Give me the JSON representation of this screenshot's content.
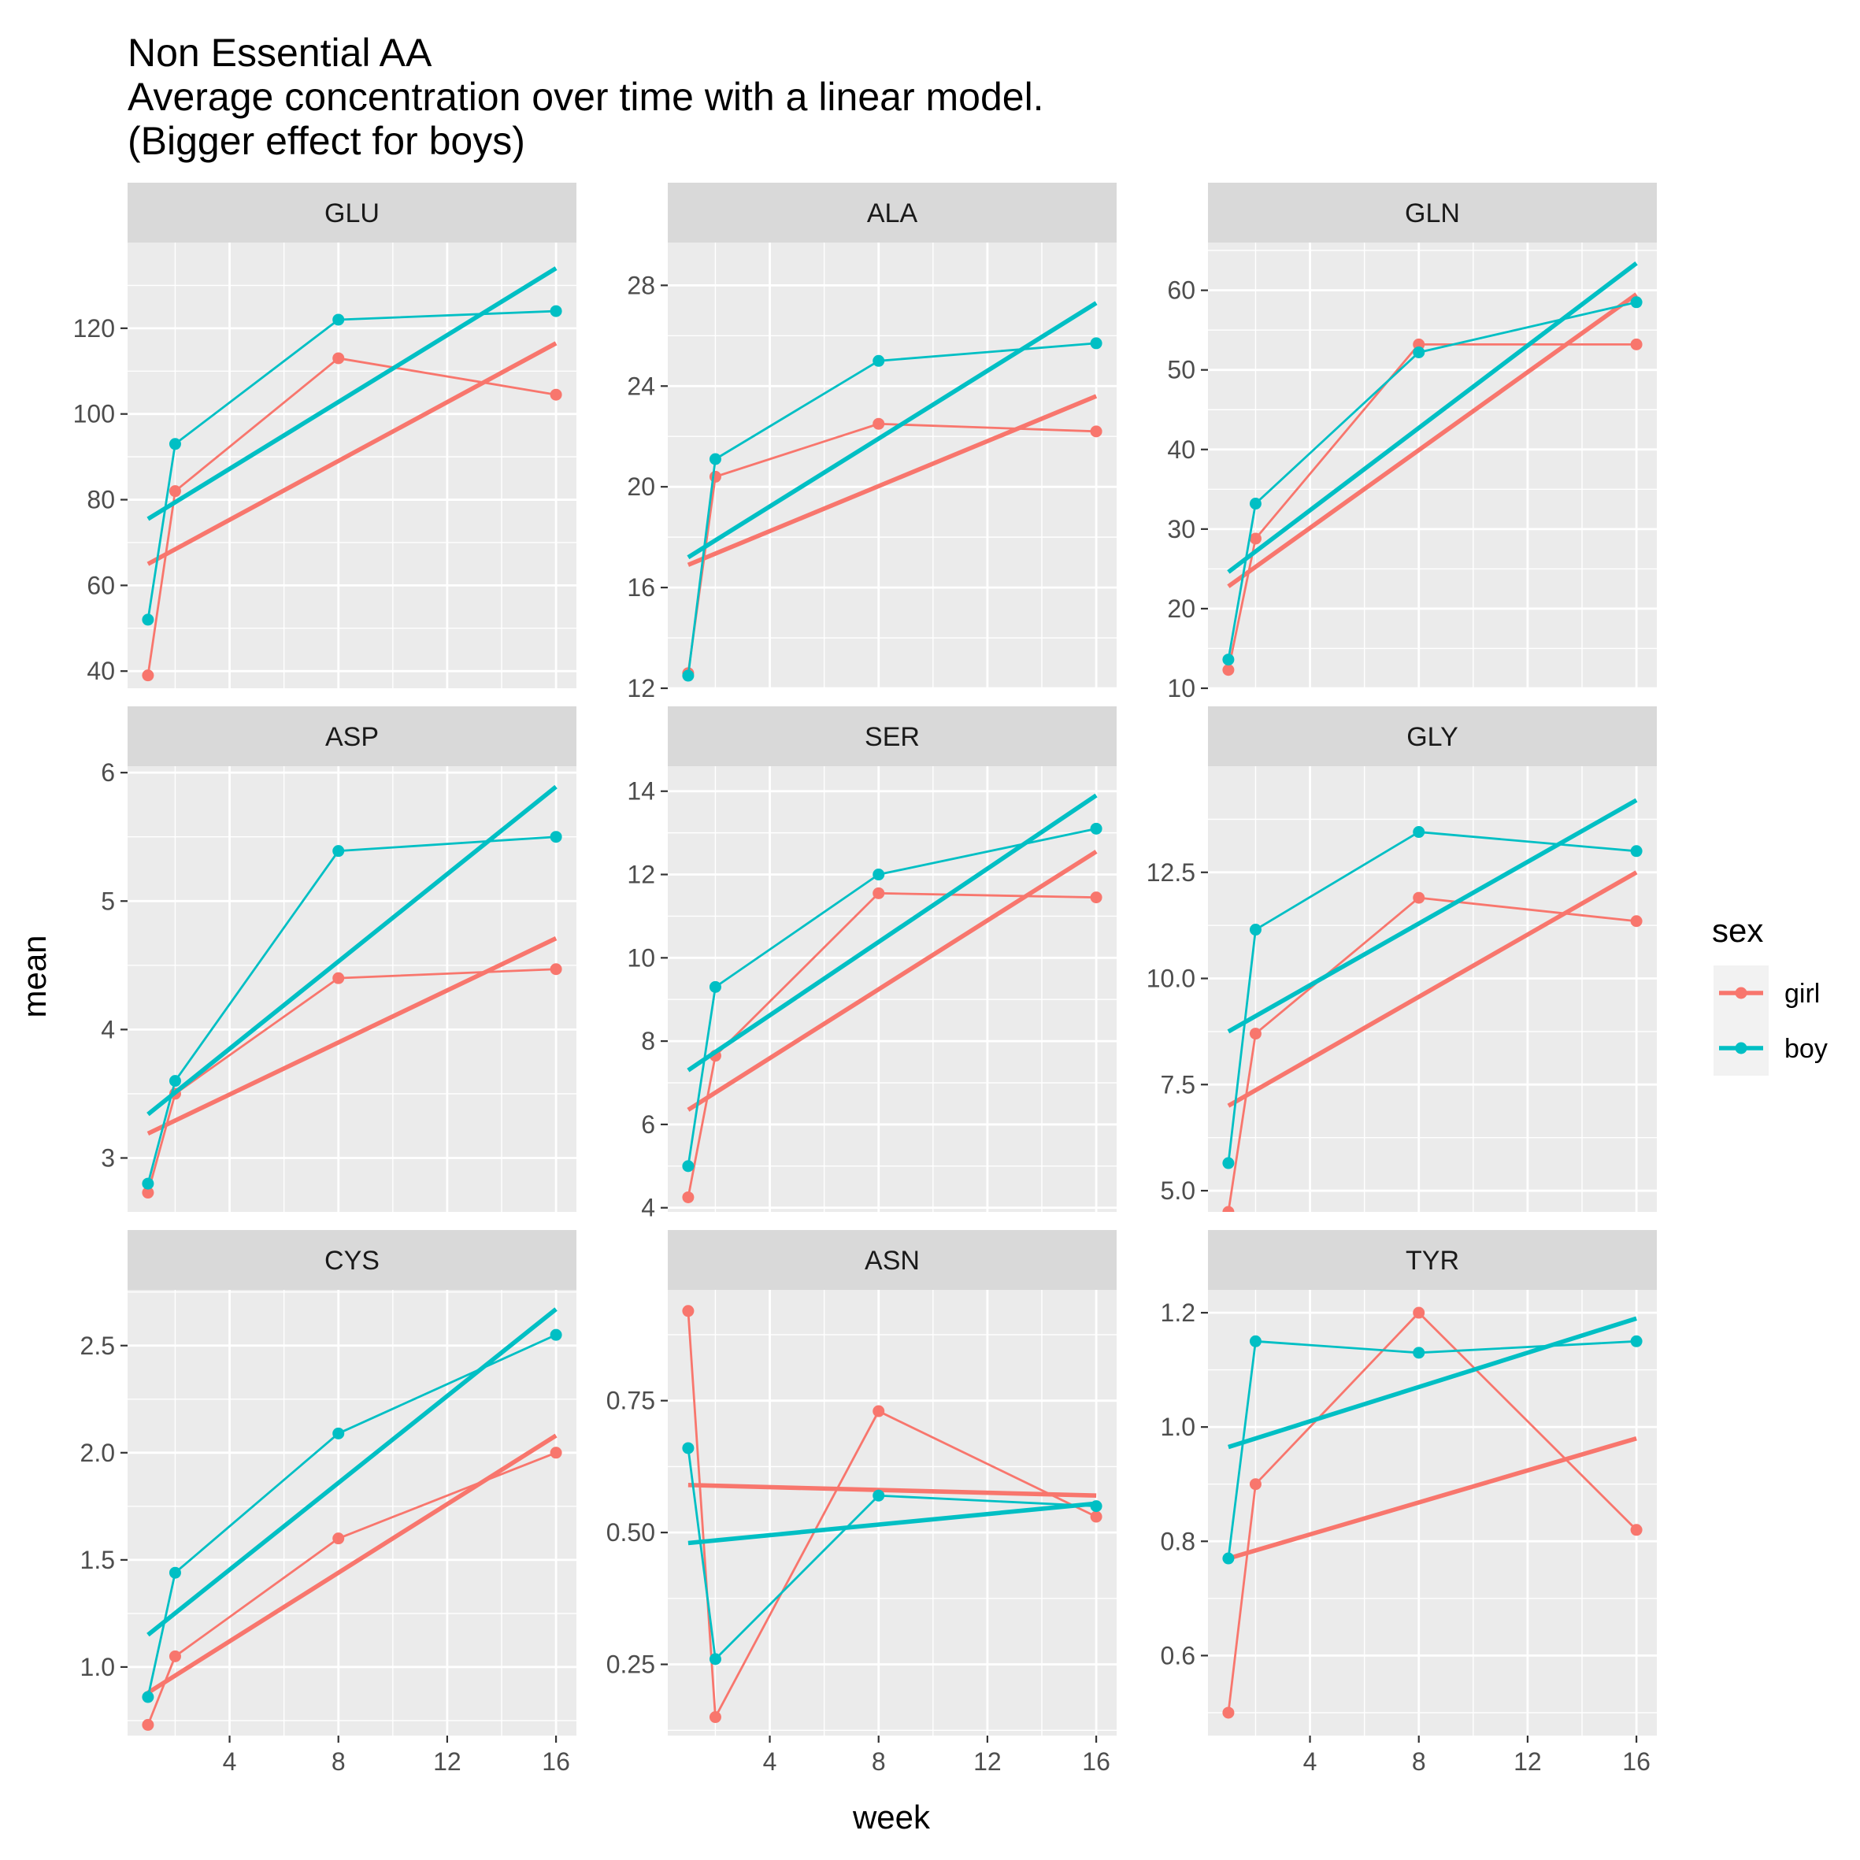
{
  "chart_data": {
    "type": "line",
    "title": "Non Essential AA",
    "subtitle_lines": [
      "Average concentration over time with a linear model.",
      "(Bigger effect for boys)"
    ],
    "xlabel": "week",
    "ylabel": "mean",
    "x": [
      1,
      2,
      8,
      16
    ],
    "x_ticks": [
      4,
      8,
      12,
      16
    ],
    "xlim": [
      0.25,
      16.75
    ],
    "grid": true,
    "legend": {
      "title": "sex",
      "position": "right",
      "entries": [
        {
          "name": "girl",
          "color": "#F8766D"
        },
        {
          "name": "boy",
          "color": "#00BFC4"
        }
      ]
    },
    "colors": {
      "girl": "#F8766D",
      "boy": "#00BFC4",
      "panel_bg": "#EBEBEB",
      "strip_bg": "#D9D9D9",
      "grid": "#FFFFFF"
    },
    "panels": [
      {
        "name": "GLU",
        "ylim": [
          36,
          140
        ],
        "y_ticks": [
          40,
          60,
          80,
          100,
          120
        ],
        "series": [
          {
            "name": "girl",
            "values": [
              39,
              82,
              113,
              104.5
            ],
            "fit": [
              65,
              116.5
            ]
          },
          {
            "name": "boy",
            "values": [
              52,
              93,
              122,
              124
            ],
            "fit": [
              75.5,
              134
            ]
          }
        ]
      },
      {
        "name": "ALA",
        "ylim": [
          12,
          29.7
        ],
        "y_ticks": [
          12,
          16,
          20,
          24,
          28
        ],
        "series": [
          {
            "name": "girl",
            "values": [
              12.6,
              20.4,
              22.5,
              22.2
            ],
            "fit": [
              16.9,
              23.6
            ]
          },
          {
            "name": "boy",
            "values": [
              12.5,
              21.1,
              25,
              25.7
            ],
            "fit": [
              17.2,
              27.3
            ]
          }
        ]
      },
      {
        "name": "GLN",
        "ylim": [
          10,
          66
        ],
        "y_ticks": [
          10,
          20,
          30,
          40,
          50,
          60
        ],
        "series": [
          {
            "name": "girl",
            "values": [
              12.3,
              28.8,
              53.2,
              53.2
            ],
            "fit": [
              22.8,
              59.5
            ]
          },
          {
            "name": "boy",
            "values": [
              13.6,
              33.2,
              52.2,
              58.5
            ],
            "fit": [
              24.6,
              63.4
            ]
          }
        ]
      },
      {
        "name": "ASP",
        "ylim": [
          2.58,
          6.05
        ],
        "y_ticks": [
          3,
          4,
          5,
          6
        ],
        "series": [
          {
            "name": "girl",
            "values": [
              2.73,
              3.5,
              4.4,
              4.47
            ],
            "fit": [
              3.19,
              4.71
            ]
          },
          {
            "name": "boy",
            "values": [
              2.8,
              3.6,
              5.39,
              5.5
            ],
            "fit": [
              3.34,
              5.89
            ]
          }
        ]
      },
      {
        "name": "SER",
        "ylim": [
          3.9,
          14.6
        ],
        "y_ticks": [
          4,
          6,
          8,
          10,
          12,
          14
        ],
        "series": [
          {
            "name": "girl",
            "values": [
              4.25,
              7.65,
              11.55,
              11.45
            ],
            "fit": [
              6.35,
              12.55
            ]
          },
          {
            "name": "boy",
            "values": [
              5,
              9.3,
              12,
              13.1
            ],
            "fit": [
              7.3,
              13.9
            ]
          }
        ]
      },
      {
        "name": "GLY",
        "ylim": [
          4.5,
          15
        ],
        "y_ticks": [
          5.0,
          7.5,
          10.0,
          12.5
        ],
        "y_tick_labels": [
          "5.0",
          "7.5",
          "10.0",
          "12.5"
        ],
        "series": [
          {
            "name": "girl",
            "values": [
              4.5,
              8.7,
              11.9,
              11.35
            ],
            "fit": [
              7,
              12.5
            ]
          },
          {
            "name": "boy",
            "values": [
              5.65,
              11.15,
              13.45,
              13
            ],
            "fit": [
              8.75,
              14.2
            ]
          }
        ]
      },
      {
        "name": "CYS",
        "ylim": [
          0.68,
          2.76
        ],
        "y_ticks": [
          1.0,
          1.5,
          2.0,
          2.5
        ],
        "y_tick_labels": [
          "1.0",
          "1.5",
          "2.0",
          "2.5"
        ],
        "series": [
          {
            "name": "girl",
            "values": [
              0.73,
              1.05,
              1.6,
              2.0
            ],
            "fit": [
              0.88,
              2.08
            ]
          },
          {
            "name": "boy",
            "values": [
              0.86,
              1.44,
              2.09,
              2.55
            ],
            "fit": [
              1.15,
              2.67
            ]
          }
        ]
      },
      {
        "name": "ASN",
        "ylim": [
          0.115,
          0.96
        ],
        "y_ticks": [
          0.25,
          0.5,
          0.75
        ],
        "y_tick_labels": [
          "0.25",
          "0.50",
          "0.75"
        ],
        "series": [
          {
            "name": "girl",
            "values": [
              0.92,
              0.15,
              0.73,
              0.53
            ],
            "fit": [
              0.59,
              0.57
            ]
          },
          {
            "name": "boy",
            "values": [
              0.66,
              0.26,
              0.57,
              0.55
            ],
            "fit": [
              0.48,
              0.555
            ]
          }
        ]
      },
      {
        "name": "TYR",
        "ylim": [
          0.46,
          1.24
        ],
        "y_ticks": [
          0.6,
          0.8,
          1.0,
          1.2
        ],
        "y_tick_labels": [
          "0.6",
          "0.8",
          "1.0",
          "1.2"
        ],
        "series": [
          {
            "name": "girl",
            "values": [
              0.5,
              0.9,
              1.2,
              0.82
            ],
            "fit": [
              0.77,
              0.98
            ]
          },
          {
            "name": "boy",
            "values": [
              0.77,
              1.15,
              1.13,
              1.15
            ],
            "fit": [
              0.965,
              1.19
            ]
          }
        ]
      }
    ]
  }
}
